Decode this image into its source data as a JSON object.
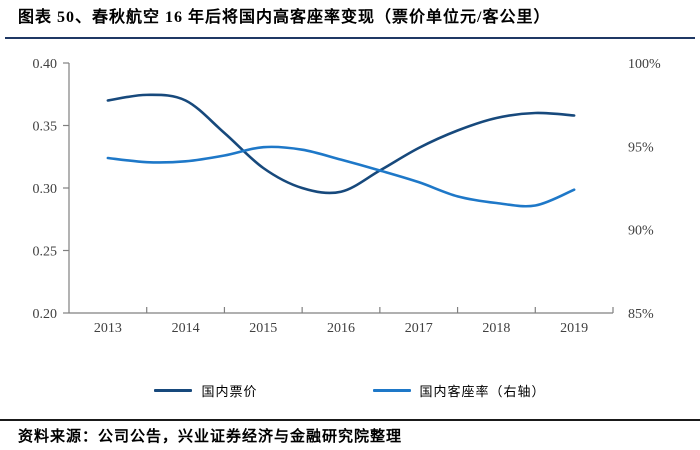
{
  "header": {
    "title": "图表 50、春秋航空 16 年后将国内高客座率变现（票价单位元/客公里）"
  },
  "footer": {
    "source": "资料来源：公司公告，兴业证券经济与金融研究院整理"
  },
  "colors": {
    "title_rule": "#1F3864",
    "footer_rule": "#1A1A1A",
    "axis_line": "#808080",
    "tick_label": "#404040",
    "fare_series": "#17497C",
    "load_series": "#1E78C8"
  },
  "chart_data": {
    "type": "line",
    "smoothed": true,
    "grid": false,
    "legend_position": "bottom",
    "title": "春秋航空16年后将国内高客座率变现（票价单位元/客公里）",
    "x_categories": [
      "2013",
      "2014",
      "2015",
      "2016",
      "2017",
      "2018",
      "2019"
    ],
    "left_axis": {
      "tick_labels": [
        "0.40",
        "0.35",
        "0.30",
        "0.25",
        "0.20"
      ],
      "range": [
        0.2,
        0.4
      ]
    },
    "right_axis": {
      "tick_labels": [
        "100%",
        "95%",
        "90%",
        "85%"
      ],
      "range": [
        85,
        100
      ]
    },
    "series": [
      {
        "name": "国内票价",
        "axis": "left",
        "color": "#17497C",
        "x": [
          2013,
          2013.5,
          2014,
          2014.5,
          2015,
          2015.5,
          2016,
          2016.5,
          2017,
          2017.5,
          2018,
          2018.5,
          2019
        ],
        "values": [
          0.37,
          0.3745,
          0.37,
          0.344,
          0.316,
          0.3,
          0.297,
          0.314,
          0.332,
          0.346,
          0.356,
          0.36,
          0.358
        ]
      },
      {
        "name": "国内客座率（右轴）",
        "axis": "right",
        "color": "#1E78C8",
        "x": [
          2013,
          2013.5,
          2014,
          2014.5,
          2015,
          2015.5,
          2016,
          2016.5,
          2017,
          2017.5,
          2018,
          2018.5,
          2019
        ],
        "values": [
          94.3,
          94.05,
          94.1,
          94.45,
          94.95,
          94.8,
          94.2,
          93.55,
          92.85,
          92.0,
          91.6,
          91.45,
          92.4
        ]
      }
    ]
  }
}
